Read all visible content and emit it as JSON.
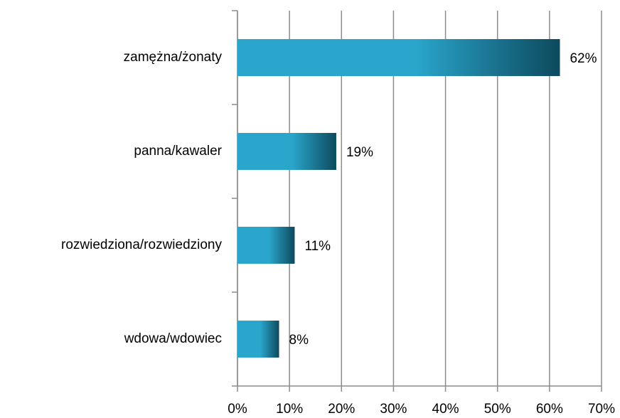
{
  "chart_data": {
    "type": "bar",
    "orientation": "horizontal",
    "categories": [
      "zamężna/żonaty",
      "panna/kawaler",
      "rozwiedziona/rozwiedziony",
      "wdowa/wdowiec"
    ],
    "values": [
      62,
      19,
      11,
      8
    ],
    "value_labels": [
      "62%",
      "19%",
      "11%",
      "8%"
    ],
    "colors": [
      "#2aa6cc",
      "#0d4a5e"
    ],
    "xlim": [
      0,
      70
    ],
    "xticks": [
      {
        "value": 0,
        "label": "0%"
      },
      {
        "value": 10,
        "label": "10%"
      },
      {
        "value": 20,
        "label": "20%"
      },
      {
        "value": 30,
        "label": "30%"
      },
      {
        "value": 40,
        "label": "40%"
      },
      {
        "value": 50,
        "label": "50%"
      },
      {
        "value": 60,
        "label": "60%"
      },
      {
        "value": 70,
        "label": "70%"
      }
    ],
    "grid": true
  }
}
